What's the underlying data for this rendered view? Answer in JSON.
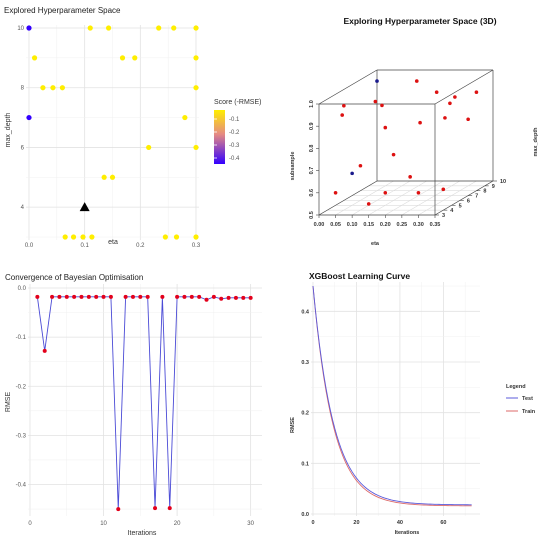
{
  "chart_data": [
    {
      "type": "scatter",
      "title": "Explored Hyperparameter Space",
      "xlabel": "eta",
      "ylabel": "max_depth",
      "xlim": [
        0,
        0.3
      ],
      "ylim": [
        3,
        10
      ],
      "xticks": [
        "0.0",
        "0.1",
        "0.2",
        "0.3"
      ],
      "yticks": [
        "4",
        "6",
        "8",
        "10"
      ],
      "legend": {
        "title": "Score (-RMSE)",
        "labels": [
          "-0.1",
          "-0.2",
          "-0.3",
          "-0.4"
        ],
        "placement": "right"
      },
      "colors": {
        "high": "#ffee00",
        "low": "#3300ff",
        "best": "#000000"
      },
      "points": [
        {
          "x": 0.0,
          "y": 10,
          "score": -0.45
        },
        {
          "x": 0.0,
          "y": 7,
          "score": -0.45
        },
        {
          "x": 0.01,
          "y": 9,
          "score": -0.02
        },
        {
          "x": 0.025,
          "y": 8,
          "score": -0.02
        },
        {
          "x": 0.043,
          "y": 8,
          "score": -0.02
        },
        {
          "x": 0.06,
          "y": 8,
          "score": -0.02
        },
        {
          "x": 0.11,
          "y": 10,
          "score": -0.02
        },
        {
          "x": 0.143,
          "y": 10,
          "score": -0.02
        },
        {
          "x": 0.168,
          "y": 9,
          "score": -0.02
        },
        {
          "x": 0.19,
          "y": 9,
          "score": -0.02
        },
        {
          "x": 0.233,
          "y": 10,
          "score": -0.02
        },
        {
          "x": 0.26,
          "y": 10,
          "score": -0.02
        },
        {
          "x": 0.3,
          "y": 10,
          "score": -0.02
        },
        {
          "x": 0.3,
          "y": 9,
          "score": -0.02
        },
        {
          "x": 0.3,
          "y": 8,
          "score": -0.02
        },
        {
          "x": 0.3,
          "y": 6,
          "score": -0.02
        },
        {
          "x": 0.3,
          "y": 3,
          "score": -0.02
        },
        {
          "x": 0.28,
          "y": 7,
          "score": -0.02
        },
        {
          "x": 0.215,
          "y": 6,
          "score": -0.02
        },
        {
          "x": 0.135,
          "y": 5,
          "score": -0.02
        },
        {
          "x": 0.15,
          "y": 5,
          "score": -0.02
        },
        {
          "x": 0.065,
          "y": 3,
          "score": -0.02
        },
        {
          "x": 0.08,
          "y": 3,
          "score": -0.02
        },
        {
          "x": 0.097,
          "y": 3,
          "score": -0.02
        },
        {
          "x": 0.113,
          "y": 3,
          "score": -0.02
        },
        {
          "x": 0.245,
          "y": 3,
          "score": -0.02
        },
        {
          "x": 0.265,
          "y": 3,
          "score": -0.02
        }
      ],
      "best_point": {
        "x": 0.1,
        "y": 4
      }
    },
    {
      "type": "scatter",
      "title": "Exploring Hyperparameter Space (3D)",
      "xlabel": "eta",
      "ylabel": "max_depth",
      "zlabel": "subsample",
      "xlim": [
        0,
        0.35
      ],
      "ylim": [
        3,
        10
      ],
      "zlim": [
        0.5,
        1.0
      ],
      "xticks": [
        "0.00",
        "0.05",
        "0.10",
        "0.15",
        "0.20",
        "0.25",
        "0.30",
        "0.35"
      ],
      "yticks": [
        "3",
        "4",
        "5",
        "6",
        "7",
        "8",
        "9",
        "10"
      ],
      "zticks": [
        "0.5",
        "0.6",
        "0.7",
        "0.8",
        "0.9",
        "1.0"
      ],
      "colors": {
        "point": "#dd1111",
        "highlight": "#1a1a8c"
      },
      "points": [
        {
          "x": 0.0,
          "y": 10,
          "z": 0.95,
          "hl": true
        },
        {
          "x": 0.0,
          "y": 7,
          "z": 0.6,
          "hl": true
        },
        {
          "x": 0.02,
          "y": 9,
          "z": 0.88
        },
        {
          "x": 0.05,
          "y": 4,
          "z": 0.97
        },
        {
          "x": 0.12,
          "y": 10,
          "z": 0.95
        },
        {
          "x": 0.18,
          "y": 10,
          "z": 0.9
        },
        {
          "x": 0.22,
          "y": 10,
          "z": 0.85
        },
        {
          "x": 0.26,
          "y": 9,
          "z": 0.9
        },
        {
          "x": 0.3,
          "y": 10,
          "z": 0.9
        },
        {
          "x": 0.3,
          "y": 9,
          "z": 0.8
        },
        {
          "x": 0.28,
          "y": 7,
          "z": 0.85
        },
        {
          "x": 0.23,
          "y": 6,
          "z": 0.85
        },
        {
          "x": 0.14,
          "y": 5,
          "z": 0.95
        },
        {
          "x": 0.15,
          "y": 5,
          "z": 0.85
        },
        {
          "x": 0.07,
          "y": 3,
          "z": 0.95
        },
        {
          "x": 0.1,
          "y": 4,
          "z": 0.7
        },
        {
          "x": 0.2,
          "y": 4,
          "z": 0.75
        },
        {
          "x": 0.25,
          "y": 4,
          "z": 0.65
        },
        {
          "x": 0.05,
          "y": 3,
          "z": 0.6
        },
        {
          "x": 0.15,
          "y": 3,
          "z": 0.55
        },
        {
          "x": 0.3,
          "y": 3,
          "z": 0.6
        },
        {
          "x": 0.3,
          "y": 6,
          "z": 0.55
        },
        {
          "x": 0.2,
          "y": 3,
          "z": 0.6
        }
      ]
    },
    {
      "type": "line",
      "title": "Convergence of Bayesian Optimisation",
      "xlabel": "Iterations",
      "ylabel": "RMSE",
      "xlim": [
        0,
        31
      ],
      "ylim": [
        -0.46,
        0
      ],
      "xticks": [
        "0",
        "10",
        "20",
        "30"
      ],
      "yticks": [
        "0.0",
        "-0.1",
        "-0.2",
        "-0.3",
        "-0.4"
      ],
      "colors": {
        "line": "#4b4bd6",
        "point": "#e3001b"
      },
      "x": [
        1,
        2,
        3,
        4,
        5,
        6,
        7,
        8,
        9,
        10,
        11,
        12,
        13,
        14,
        15,
        16,
        17,
        18,
        19,
        20,
        21,
        22,
        23,
        24,
        25,
        26,
        27,
        28,
        29,
        30
      ],
      "y": [
        -0.018,
        -0.128,
        -0.018,
        -0.018,
        -0.018,
        -0.018,
        -0.018,
        -0.018,
        -0.018,
        -0.018,
        -0.018,
        -0.45,
        -0.018,
        -0.018,
        -0.018,
        -0.018,
        -0.448,
        -0.018,
        -0.448,
        -0.018,
        -0.018,
        -0.018,
        -0.018,
        -0.024,
        -0.018,
        -0.022,
        -0.02,
        -0.02,
        -0.02,
        -0.02
      ]
    },
    {
      "type": "line",
      "title": "XGBoost Learning Curve",
      "xlabel": "Iterations",
      "ylabel": "RMSE",
      "xlim": [
        0,
        75
      ],
      "ylim": [
        0,
        0.45
      ],
      "xticks": [
        "0",
        "20",
        "40",
        "60"
      ],
      "yticks": [
        "0.0",
        "0.1",
        "0.2",
        "0.3",
        "0.4"
      ],
      "legend": {
        "title": "Legend",
        "placement": "right"
      },
      "series": [
        {
          "name": "Test",
          "color": "#5b5bdb",
          "start": 0.45,
          "asymptote": 0.018,
          "decay": 0.105
        },
        {
          "name": "Train",
          "color": "#dd6a6a",
          "start": 0.45,
          "asymptote": 0.016,
          "decay": 0.108
        }
      ]
    }
  ]
}
